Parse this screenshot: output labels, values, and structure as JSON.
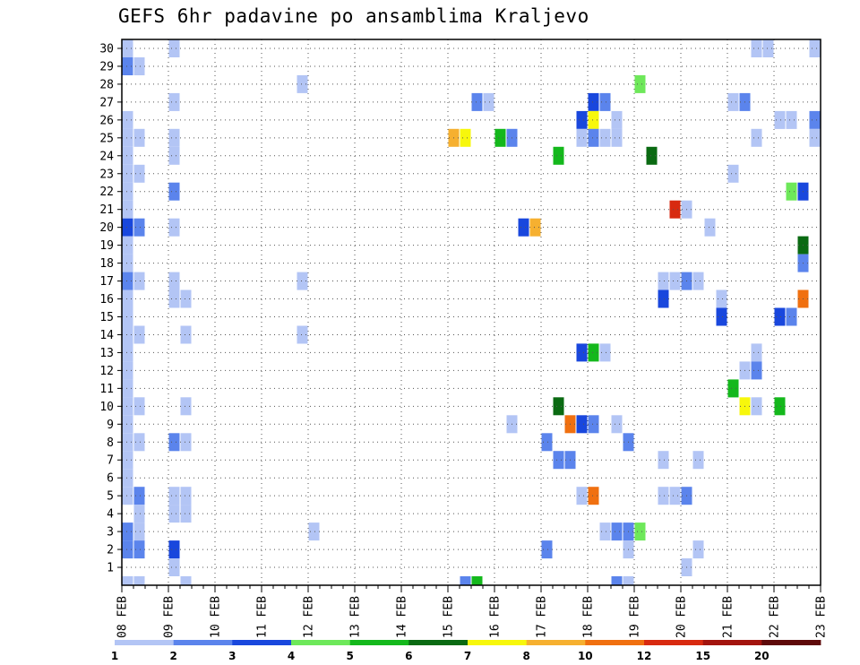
{
  "chart_data": {
    "type": "heatmap",
    "title": "GEFS 6hr padavine po ansamblima Kraljevo",
    "xlabel": "",
    "ylabel": "",
    "x_tick_labels": [
      "08 FEB",
      "09 FEB",
      "10 FEB",
      "11 FEB",
      "12 FEB",
      "13 FEB",
      "14 FEB",
      "15 FEB",
      "16 FEB",
      "17 FEB",
      "18 FEB",
      "19 FEB",
      "20 FEB",
      "21 FEB",
      "22 FEB",
      "23 FEB"
    ],
    "y_tick_labels": [
      "1",
      "2",
      "3",
      "4",
      "5",
      "6",
      "7",
      "8",
      "9",
      "10",
      "11",
      "12",
      "13",
      "14",
      "15",
      "16",
      "17",
      "18",
      "19",
      "20",
      "21",
      "22",
      "23",
      "24",
      "25",
      "26",
      "27",
      "28",
      "29",
      "30"
    ],
    "x_range_steps": [
      0,
      60
    ],
    "y_range_members": [
      0,
      30
    ],
    "grid": true,
    "legend_placement": "bottom",
    "legend_labels": [
      "1",
      "2",
      "3",
      "4",
      "5",
      "6",
      "7",
      "8",
      "10",
      "12",
      "15",
      "20"
    ],
    "colors": [
      "#b3c5f5",
      "#5b84ec",
      "#1947dd",
      "#6ee85a",
      "#14b81c",
      "#0a6a12",
      "#f7f70c",
      "#f6b030",
      "#f07010",
      "#d82a10",
      "#a3140e",
      "#5e0a0a"
    ],
    "cells": [
      [
        0,
        30,
        1
      ],
      [
        4,
        30,
        1
      ],
      [
        54,
        30,
        1
      ],
      [
        55,
        30,
        1
      ],
      [
        59,
        30,
        1
      ],
      [
        0,
        29,
        2
      ],
      [
        1,
        29,
        1
      ],
      [
        15,
        28,
        1
      ],
      [
        44,
        28,
        4
      ],
      [
        4,
        27,
        1
      ],
      [
        30,
        27,
        2
      ],
      [
        31,
        27,
        1
      ],
      [
        40,
        27,
        3
      ],
      [
        41,
        27,
        2
      ],
      [
        52,
        27,
        1
      ],
      [
        53,
        27,
        2
      ],
      [
        0,
        26,
        1
      ],
      [
        39,
        26,
        3
      ],
      [
        40,
        26,
        7
      ],
      [
        42,
        26,
        1
      ],
      [
        56,
        26,
        1
      ],
      [
        57,
        26,
        1
      ],
      [
        59,
        26,
        2
      ],
      [
        0,
        25,
        1
      ],
      [
        1,
        25,
        1
      ],
      [
        4,
        25,
        1
      ],
      [
        28,
        25,
        8
      ],
      [
        29,
        25,
        7
      ],
      [
        32,
        25,
        5
      ],
      [
        33,
        25,
        2
      ],
      [
        39,
        25,
        1
      ],
      [
        40,
        25,
        2
      ],
      [
        41,
        25,
        1
      ],
      [
        42,
        25,
        1
      ],
      [
        54,
        25,
        1
      ],
      [
        59,
        25,
        1
      ],
      [
        0,
        24,
        1
      ],
      [
        4,
        24,
        1
      ],
      [
        37,
        24,
        5
      ],
      [
        45,
        24,
        6
      ],
      [
        0,
        23,
        1
      ],
      [
        1,
        23,
        1
      ],
      [
        52,
        23,
        1
      ],
      [
        0,
        22,
        1
      ],
      [
        4,
        22,
        2
      ],
      [
        57,
        22,
        4
      ],
      [
        58,
        22,
        3
      ],
      [
        0,
        21,
        1
      ],
      [
        47,
        21,
        10
      ],
      [
        48,
        21,
        1
      ],
      [
        0,
        20,
        3
      ],
      [
        1,
        20,
        2
      ],
      [
        4,
        20,
        1
      ],
      [
        34,
        20,
        3
      ],
      [
        35,
        20,
        8
      ],
      [
        50,
        20,
        1
      ],
      [
        0,
        19,
        1
      ],
      [
        58,
        19,
        6
      ],
      [
        0,
        18,
        1
      ],
      [
        58,
        18,
        2
      ],
      [
        0,
        17,
        2
      ],
      [
        1,
        17,
        1
      ],
      [
        4,
        17,
        1
      ],
      [
        15,
        17,
        1
      ],
      [
        46,
        17,
        1
      ],
      [
        47,
        17,
        1
      ],
      [
        48,
        17,
        2
      ],
      [
        49,
        17,
        1
      ],
      [
        0,
        16,
        1
      ],
      [
        4,
        16,
        1
      ],
      [
        5,
        16,
        1
      ],
      [
        46,
        16,
        3
      ],
      [
        51,
        16,
        1
      ],
      [
        58,
        16,
        9
      ],
      [
        0,
        15,
        1
      ],
      [
        51,
        15,
        3
      ],
      [
        56,
        15,
        3
      ],
      [
        57,
        15,
        2
      ],
      [
        0,
        14,
        1
      ],
      [
        1,
        14,
        1
      ],
      [
        5,
        14,
        1
      ],
      [
        15,
        14,
        1
      ],
      [
        0,
        13,
        1
      ],
      [
        39,
        13,
        3
      ],
      [
        40,
        13,
        5
      ],
      [
        41,
        13,
        1
      ],
      [
        54,
        13,
        1
      ],
      [
        0,
        12,
        1
      ],
      [
        53,
        12,
        1
      ],
      [
        54,
        12,
        2
      ],
      [
        0,
        11,
        1
      ],
      [
        52,
        11,
        5
      ],
      [
        0,
        10,
        1
      ],
      [
        1,
        10,
        1
      ],
      [
        5,
        10,
        1
      ],
      [
        37,
        10,
        6
      ],
      [
        53,
        10,
        7
      ],
      [
        54,
        10,
        1
      ],
      [
        56,
        10,
        5
      ],
      [
        0,
        9,
        1
      ],
      [
        33,
        9,
        1
      ],
      [
        38,
        9,
        9
      ],
      [
        39,
        9,
        3
      ],
      [
        40,
        9,
        2
      ],
      [
        42,
        9,
        1
      ],
      [
        0,
        8,
        1
      ],
      [
        1,
        8,
        1
      ],
      [
        4,
        8,
        2
      ],
      [
        5,
        8,
        1
      ],
      [
        36,
        8,
        2
      ],
      [
        43,
        8,
        2
      ],
      [
        0,
        7,
        1
      ],
      [
        37,
        7,
        2
      ],
      [
        38,
        7,
        2
      ],
      [
        46,
        7,
        1
      ],
      [
        49,
        7,
        1
      ],
      [
        0,
        6,
        1
      ],
      [
        0,
        5,
        1
      ],
      [
        1,
        5,
        2
      ],
      [
        4,
        5,
        1
      ],
      [
        5,
        5,
        1
      ],
      [
        39,
        5,
        1
      ],
      [
        40,
        5,
        9
      ],
      [
        46,
        5,
        1
      ],
      [
        47,
        5,
        1
      ],
      [
        48,
        5,
        2
      ],
      [
        1,
        4,
        1
      ],
      [
        4,
        4,
        1
      ],
      [
        5,
        4,
        1
      ],
      [
        0,
        3,
        2
      ],
      [
        1,
        3,
        1
      ],
      [
        16,
        3,
        1
      ],
      [
        41,
        3,
        1
      ],
      [
        42,
        3,
        2
      ],
      [
        43,
        3,
        2
      ],
      [
        44,
        3,
        4
      ],
      [
        0,
        2,
        2
      ],
      [
        1,
        2,
        2
      ],
      [
        4,
        2,
        3
      ],
      [
        36,
        2,
        2
      ],
      [
        43,
        2,
        1
      ],
      [
        49,
        2,
        1
      ],
      [
        4,
        1,
        1
      ],
      [
        48,
        1,
        1
      ],
      [
        0,
        0,
        1
      ],
      [
        1,
        0,
        1
      ],
      [
        5,
        0,
        1
      ],
      [
        29,
        0,
        2
      ],
      [
        30,
        0,
        5
      ],
      [
        42,
        0,
        2
      ],
      [
        43,
        0,
        1
      ]
    ]
  }
}
